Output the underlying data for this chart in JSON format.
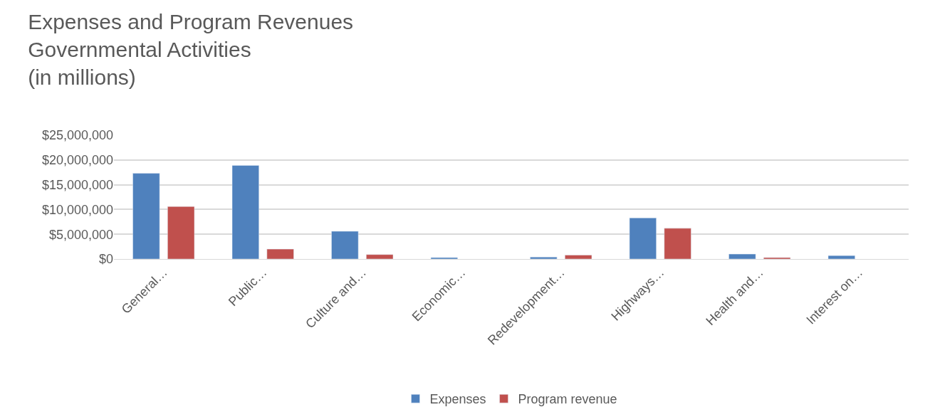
{
  "chart_data": {
    "type": "bar",
    "title": "Expenses and Program Revenues\nGovernmental Activities\n(in millions)",
    "categories": [
      "General…",
      "Public…",
      "Culture and…",
      "Economic…",
      "Redevelopment…",
      "Highways…",
      "Health and…",
      "Interest on…"
    ],
    "series": [
      {
        "name": "Expenses",
        "color": "#4f81bd",
        "values": [
          17300000,
          18900000,
          5600000,
          300000,
          400000,
          8300000,
          1000000,
          700000
        ]
      },
      {
        "name": "Program revenue",
        "color": "#c0504d",
        "values": [
          10600000,
          2000000,
          900000,
          null,
          800000,
          6200000,
          300000,
          null
        ]
      }
    ],
    "ylim": [
      0,
      25000000
    ],
    "yticks": [
      {
        "value": 0,
        "label": "$0"
      },
      {
        "value": 5000000,
        "label": "$5,000,000"
      },
      {
        "value": 10000000,
        "label": "$10,000,000"
      },
      {
        "value": 15000000,
        "label": "$15,000,000"
      },
      {
        "value": 20000000,
        "label": "$20,000,000"
      },
      {
        "value": 25000000,
        "label": "$25,000,000"
      }
    ],
    "grid": "y",
    "legend": "bottom"
  }
}
